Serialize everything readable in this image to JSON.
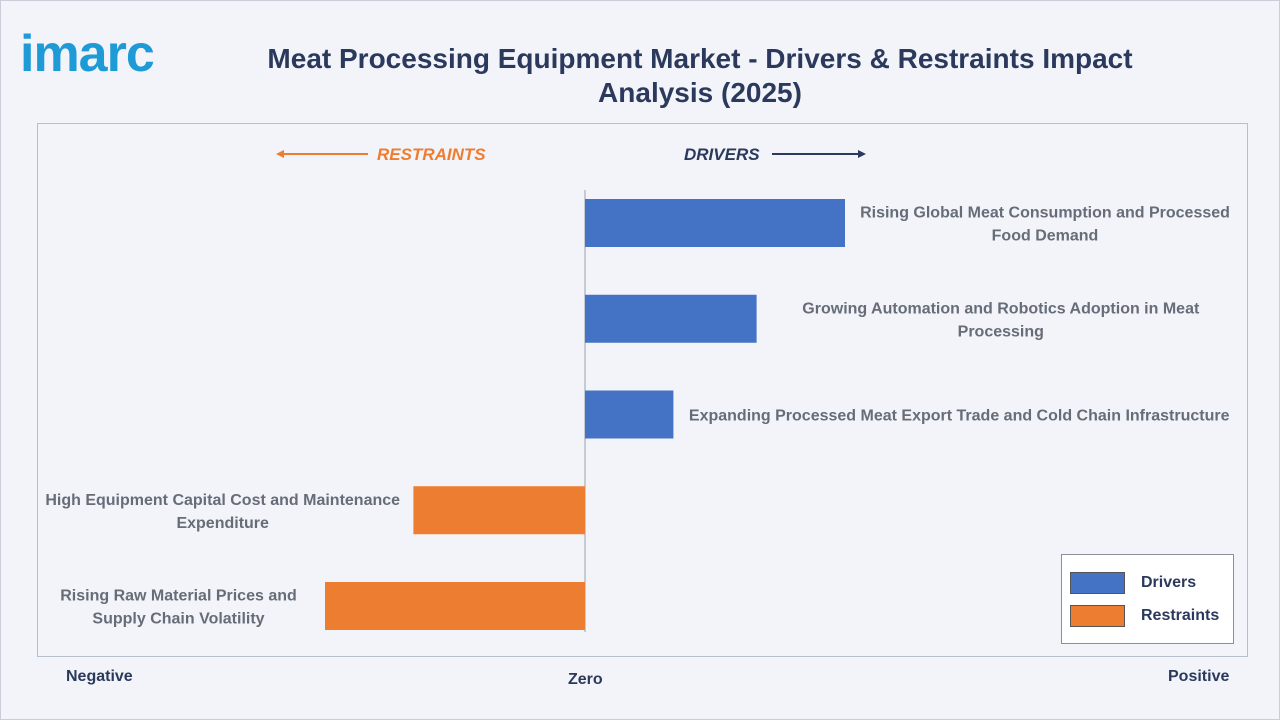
{
  "brand": {
    "logo_text": "imarc"
  },
  "header": {
    "title": "Meat Processing Equipment Market - Drivers & Restraints Impact Analysis (2025)"
  },
  "colors": {
    "drivers": "#4472c4",
    "restraints": "#ed7d31",
    "title": "#2b3a5c",
    "brand": "#1e9bd7"
  },
  "direction": {
    "restraints_label": "RESTRAINTS",
    "drivers_label": "DRIVERS"
  },
  "axis": {
    "negative_label": "Negative",
    "zero_label": "Zero",
    "positive_label": "Positive"
  },
  "legend": {
    "items": [
      {
        "label": "Drivers"
      },
      {
        "label": "Restraints"
      }
    ]
  },
  "chart_data": {
    "type": "bar",
    "orientation": "horizontal",
    "xlim": [
      -1,
      1.1
    ],
    "categories": [
      "Rising Global Meat Consumption and Processed Food Demand",
      "Growing Automation and Robotics Adoption in Meat Processing",
      "Expanding Processed Meat Export Trade and Cold Chain Infrastructure",
      "High Equipment Capital Cost and Maintenance Expenditure",
      "Rising Raw Material Prices and Supply Chain Volatility"
    ],
    "series": [
      {
        "name": "Drivers",
        "values": [
          0.5,
          0.33,
          0.17,
          null,
          null
        ]
      },
      {
        "name": "Restraints",
        "values": [
          null,
          null,
          null,
          -0.33,
          -0.5
        ]
      }
    ],
    "legend_position": "bottom-right",
    "grid": false
  }
}
